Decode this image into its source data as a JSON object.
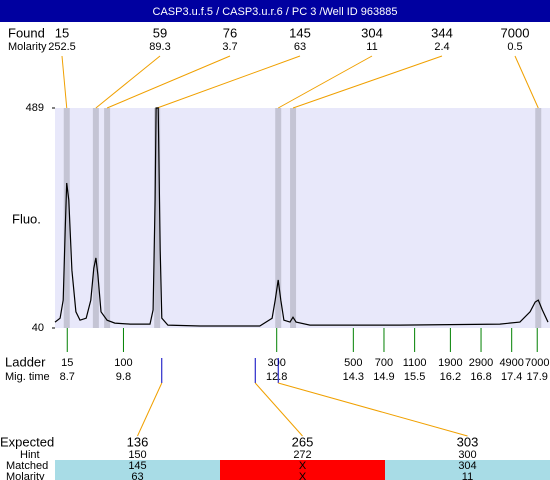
{
  "title": "CASP3.u.f.5 / CASP3.u.r.6 / PC 3 /Well ID 963885",
  "found": {
    "label": "Found",
    "molarity_label": "Molarity",
    "band_color": "#c4c4d4",
    "peaks": [
      {
        "size": 15,
        "molarity": 252.5,
        "time": 8.69
      },
      {
        "size": 59,
        "molarity": 89.3,
        "time": 9.26
      },
      {
        "size": 76,
        "molarity": 3.7,
        "time": 9.48
      },
      {
        "size": 145,
        "molarity": 63,
        "time": 10.46
      },
      {
        "size": 304,
        "molarity": 11,
        "time": 12.83
      },
      {
        "size": 344,
        "molarity": 2.4,
        "time": 13.12
      },
      {
        "size": 7000,
        "molarity": 0.5,
        "time": 17.92
      }
    ]
  },
  "chart_data": {
    "type": "line",
    "ylabel": "Fluo.",
    "ylim": [
      40,
      489
    ],
    "yticks": [
      40,
      489
    ],
    "xlim": [
      8.46,
      18.15
    ],
    "background": "#e8e8fa",
    "color": "#000000",
    "x": [
      8.46,
      8.56,
      8.62,
      8.66,
      8.69,
      8.73,
      8.79,
      8.87,
      8.95,
      9.07,
      9.16,
      9.22,
      9.26,
      9.3,
      9.36,
      9.48,
      9.63,
      9.93,
      10.32,
      10.38,
      10.42,
      10.44,
      10.48,
      10.52,
      10.55,
      10.67,
      11.3,
      12.47,
      12.71,
      12.77,
      12.83,
      12.88,
      12.94,
      13.06,
      13.12,
      13.18,
      13.45,
      15.21,
      17.17,
      17.56,
      17.76,
      17.86,
      17.92,
      18.0,
      18.11
    ],
    "values": [
      52,
      60,
      97,
      240,
      336,
      301,
      158,
      73,
      56,
      60,
      97,
      162,
      183,
      148,
      73,
      56,
      50,
      48,
      48,
      77,
      301,
      489,
      489,
      199,
      60,
      46,
      44,
      44,
      60,
      97,
      138,
      97,
      56,
      52,
      62,
      52,
      46,
      46,
      48,
      52,
      73,
      93,
      97,
      77,
      52
    ]
  },
  "ladder": {
    "label": "Ladder",
    "time_label": "Mig. time",
    "color": "#008000",
    "sizes": [
      15,
      100,
      300,
      500,
      700,
      1100,
      1900,
      2900,
      4900,
      7000
    ],
    "times": [
      8.7,
      9.8,
      12.8,
      14.3,
      14.9,
      15.5,
      16.2,
      16.8,
      17.4,
      17.9
    ]
  },
  "expected": {
    "label": "Expected",
    "hint_label": "Hint",
    "matched_label": "Matched",
    "molarity_label": "Molarity",
    "marker_color": "#0000c0",
    "columns": [
      {
        "expected": 136,
        "hint": 150,
        "matched": 145,
        "molarity": 63,
        "time": 10.55,
        "color": "#a8dce6"
      },
      {
        "expected": 265,
        "hint": 272,
        "matched": "X",
        "molarity": "X",
        "time": 12.38,
        "color": "#ff0000"
      },
      {
        "expected": 303,
        "hint": 300,
        "matched": 304,
        "molarity": 11,
        "time": 12.83,
        "color": "#a8dce6"
      }
    ]
  }
}
